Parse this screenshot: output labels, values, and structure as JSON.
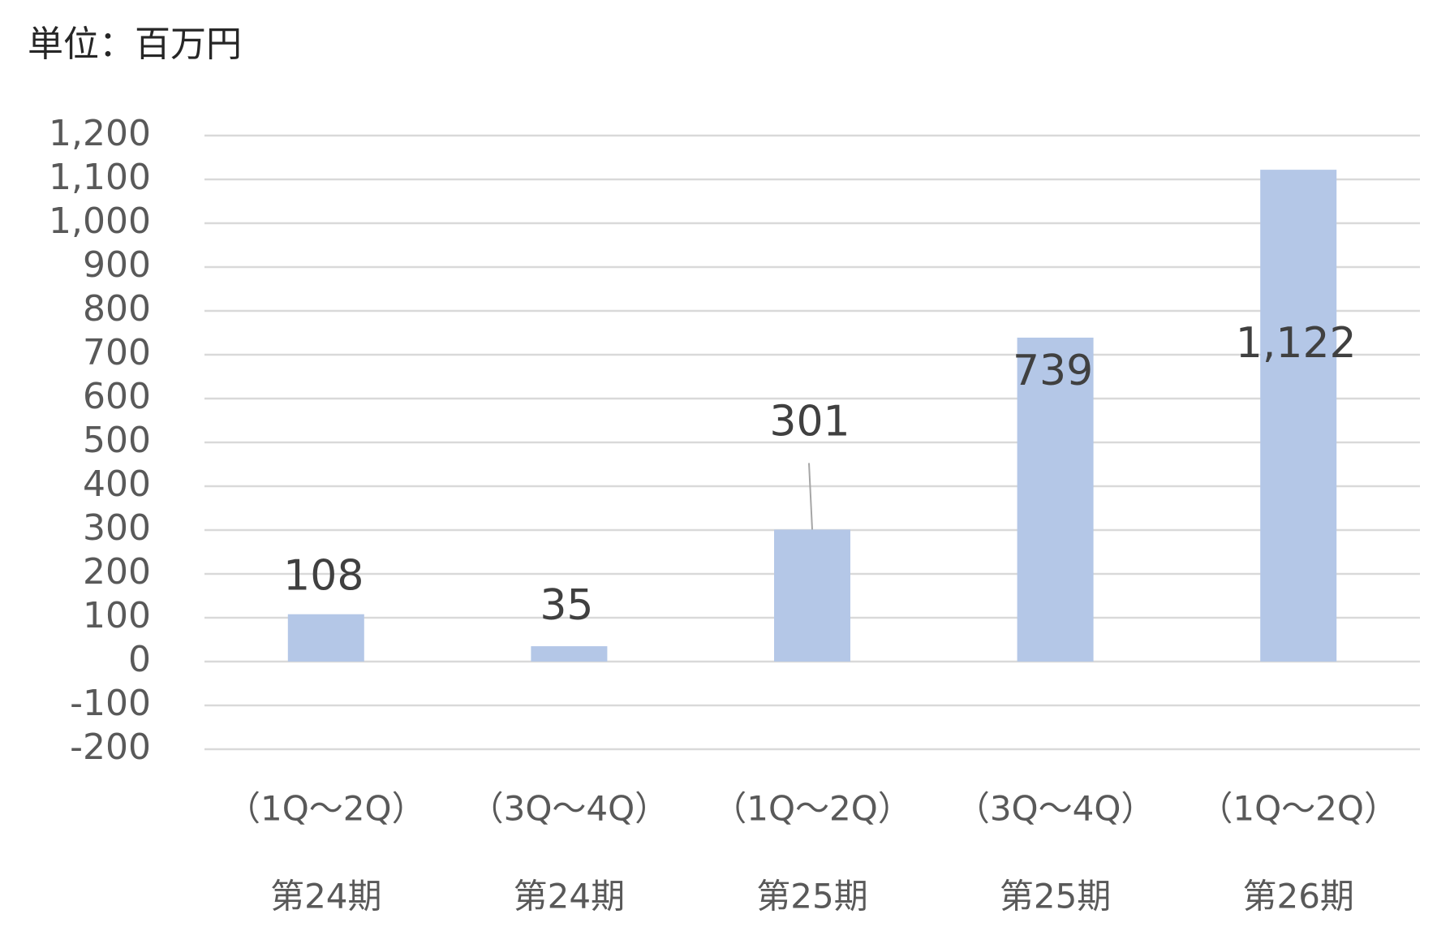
{
  "chart_data": {
    "type": "bar",
    "unit_label": "単位：百万円",
    "categories": [
      [
        "（1Q～2Q）",
        "第24期"
      ],
      [
        "（3Q～4Q）",
        "第24期"
      ],
      [
        "（1Q～2Q）",
        "第25期"
      ],
      [
        "（3Q～4Q）",
        "第25期"
      ],
      [
        "（1Q～2Q）",
        "第26期"
      ]
    ],
    "values": [
      108,
      35,
      301,
      739,
      1122
    ],
    "value_labels": [
      "108",
      "35",
      "301",
      "739",
      "1,122"
    ],
    "color": "#b4c7e7",
    "ylim": [
      -200,
      1200
    ],
    "yticks": [
      -200,
      -100,
      0,
      100,
      200,
      300,
      400,
      500,
      600,
      700,
      800,
      900,
      {
        "value": 1000,
        "label": "1,000"
      },
      {
        "value": 1100,
        "label": "1,100"
      },
      {
        "value": 1200,
        "label": "1,200"
      }
    ],
    "grid": true
  }
}
